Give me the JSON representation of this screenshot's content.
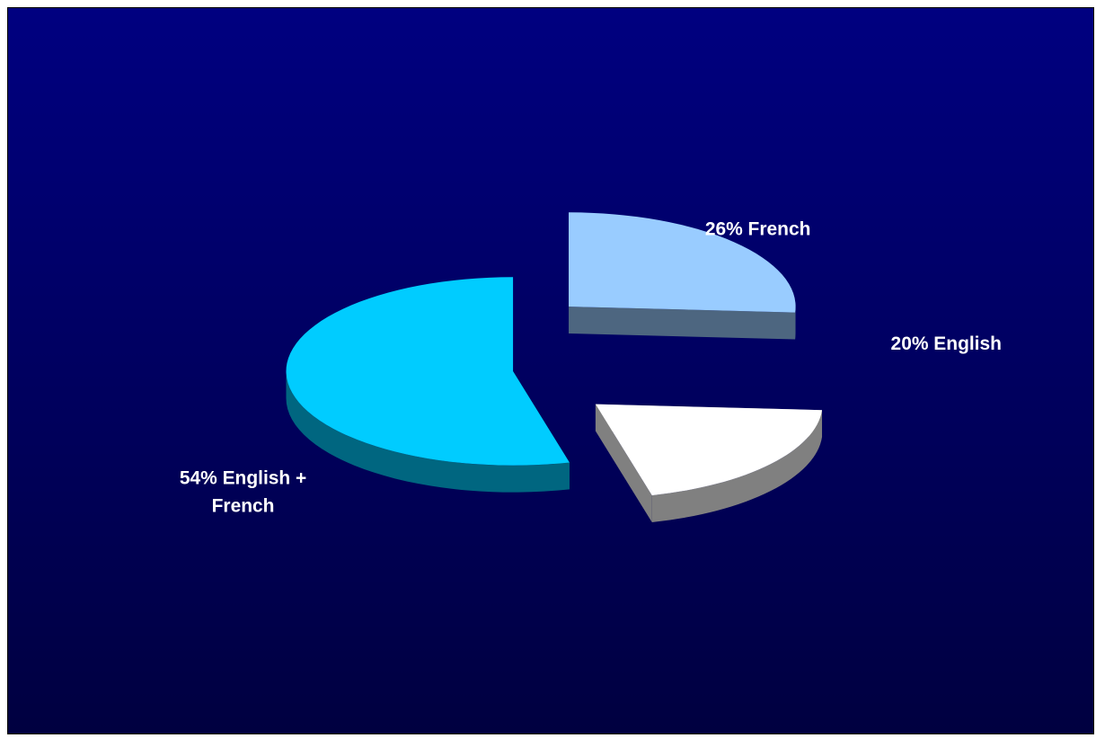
{
  "chart_data": {
    "type": "pie",
    "title": "",
    "three_d": true,
    "exploded": true,
    "legend": "none",
    "slices": [
      {
        "label_lines": [
          "26% French"
        ],
        "category": "French",
        "value": 26,
        "color": "#99ccff",
        "side_color": "#4d6680"
      },
      {
        "label_lines": [
          "20% English"
        ],
        "category": "English",
        "value": 20,
        "color": "#ffffff",
        "side_color": "#808080"
      },
      {
        "label_lines": [
          "54% English +",
          "French"
        ],
        "category": "English + French",
        "value": 54,
        "color": "#00ccff",
        "side_color": "#006680"
      }
    ],
    "background": {
      "top": "#000080",
      "bottom": "#000040"
    }
  }
}
